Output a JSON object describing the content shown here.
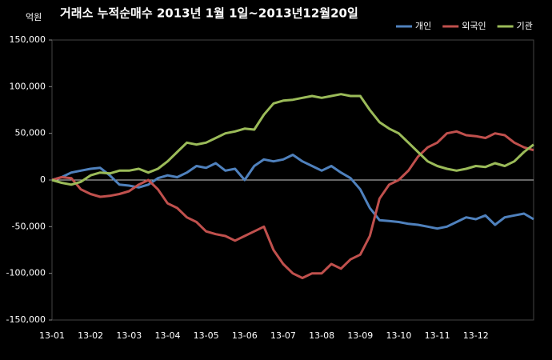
{
  "chart_data": {
    "type": "line",
    "title": "거래소 누적순매수 2013년 1월 1일~2013년12월20일",
    "ylabel": "억원",
    "categories": [
      "13-01",
      null,
      null,
      null,
      "13-02",
      null,
      null,
      null,
      "13-03",
      null,
      null,
      null,
      "13-04",
      null,
      null,
      null,
      "13-05",
      null,
      null,
      null,
      "13-06",
      null,
      null,
      null,
      "13-07",
      null,
      null,
      null,
      "13-08",
      null,
      null,
      null,
      "13-09",
      null,
      null,
      null,
      "13-10",
      null,
      null,
      null,
      "13-11",
      null,
      null,
      null,
      "13-12",
      null,
      null,
      null,
      null,
      null,
      null
    ],
    "series": [
      {
        "name": "개인",
        "color": "#4f81bd",
        "values": [
          0,
          3000,
          8000,
          10000,
          12000,
          13000,
          5000,
          -5000,
          -6000,
          -8000,
          -5000,
          2000,
          5000,
          3000,
          8000,
          15000,
          13000,
          18000,
          10000,
          12000,
          0,
          15000,
          22000,
          20000,
          22000,
          27000,
          20000,
          15000,
          10000,
          15000,
          8000,
          2000,
          -10000,
          -30000,
          -43000,
          -44000,
          -45000,
          -47000,
          -48000,
          -50000,
          -52000,
          -50000,
          -45000,
          -40000,
          -42000,
          -38000,
          -48000,
          -40000,
          -38000,
          -36000,
          -42000
        ]
      },
      {
        "name": "외국인",
        "color": "#c0504d",
        "values": [
          0,
          3000,
          2000,
          -10000,
          -15000,
          -18000,
          -17000,
          -15000,
          -12000,
          -5000,
          0,
          -10000,
          -25000,
          -30000,
          -40000,
          -45000,
          -55000,
          -58000,
          -60000,
          -65000,
          -60000,
          -55000,
          -50000,
          -75000,
          -90000,
          -100000,
          -105000,
          -100000,
          -100000,
          -90000,
          -95000,
          -85000,
          -80000,
          -60000,
          -20000,
          -5000,
          0,
          10000,
          25000,
          35000,
          40000,
          50000,
          52000,
          48000,
          47000,
          45000,
          50000,
          48000,
          40000,
          35000,
          32000
        ]
      },
      {
        "name": "기관",
        "color": "#9bbb59",
        "values": [
          0,
          -3000,
          -5000,
          -2000,
          5000,
          8000,
          7000,
          10000,
          10000,
          12000,
          8000,
          12000,
          20000,
          30000,
          40000,
          38000,
          40000,
          45000,
          50000,
          52000,
          55000,
          54000,
          70000,
          82000,
          85000,
          86000,
          88000,
          90000,
          88000,
          90000,
          92000,
          90000,
          90000,
          75000,
          62000,
          55000,
          50000,
          40000,
          30000,
          20000,
          15000,
          12000,
          10000,
          12000,
          15000,
          14000,
          18000,
          15000,
          20000,
          30000,
          38000
        ]
      }
    ],
    "ylim": [
      -150000,
      150000
    ],
    "yticks": [
      {
        "value": -150000,
        "label": "-150,000"
      },
      {
        "value": -100000,
        "label": "-100,000"
      },
      {
        "value": -50000,
        "label": "-50,000"
      },
      0,
      {
        "value": 50000,
        "label": "50,000"
      },
      {
        "value": 100000,
        "label": "100,000"
      },
      {
        "value": 150000,
        "label": "150,000"
      }
    ],
    "grid": false,
    "legend": "top-right"
  }
}
